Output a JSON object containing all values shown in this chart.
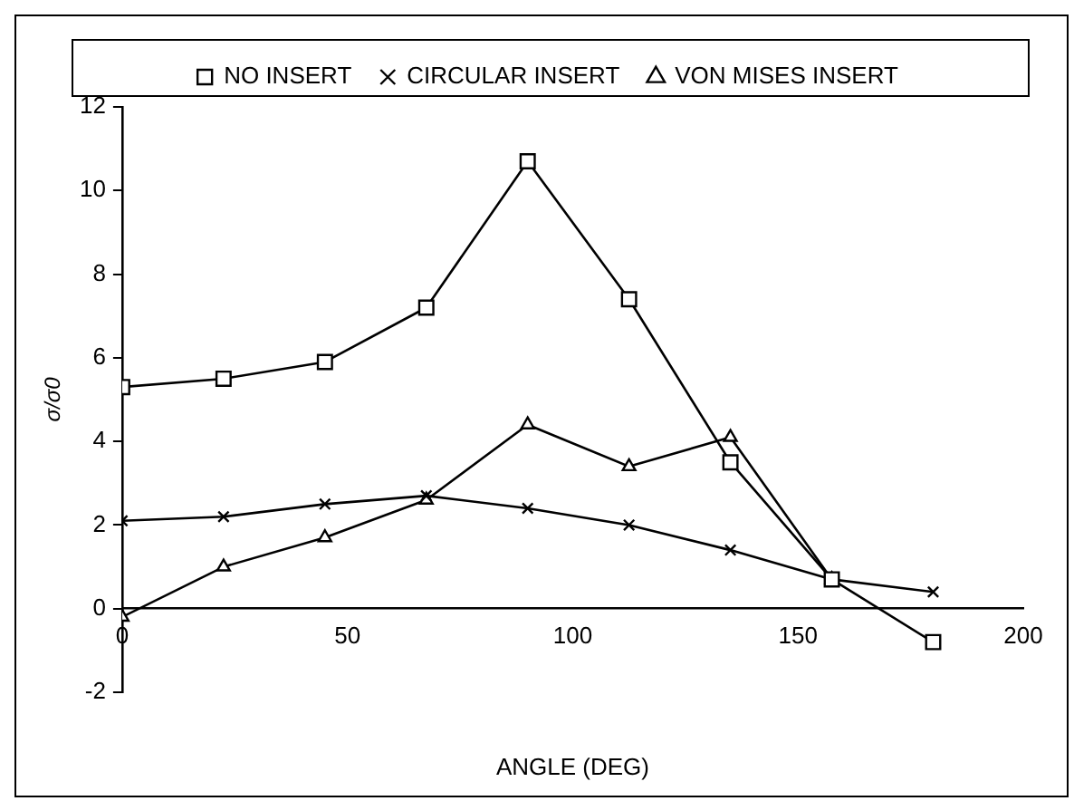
{
  "chart_data": {
    "type": "line",
    "xlabel": "ANGLE (DEG)",
    "ylabel": "σ/σ0",
    "xlim": [
      0,
      200
    ],
    "xticks": [
      0,
      50,
      100,
      150,
      200
    ],
    "ylim": [
      -2,
      12
    ],
    "yticks": [
      -2,
      0,
      2,
      4,
      6,
      8,
      10,
      12
    ],
    "x": [
      0,
      22.5,
      45,
      67.5,
      90,
      112.5,
      135,
      157.5,
      180
    ],
    "series": [
      {
        "name": "NO INSERT",
        "color": "#000000",
        "marker": "square",
        "values": [
          5.3,
          5.5,
          5.9,
          7.2,
          10.7,
          7.4,
          3.5,
          0.7,
          -0.8
        ]
      },
      {
        "name": "CIRCULAR INSERT",
        "color": "#000000",
        "marker": "cross",
        "values": [
          2.1,
          2.2,
          2.5,
          2.7,
          2.4,
          2.0,
          1.4,
          0.7,
          0.4
        ]
      },
      {
        "name": "VON MISES INSERT",
        "color": "#000000",
        "marker": "triangle",
        "values": [
          -0.2,
          1.0,
          1.7,
          2.6,
          4.4,
          3.4,
          4.1,
          0.7,
          null
        ]
      }
    ],
    "legend": "top",
    "grid": false
  }
}
